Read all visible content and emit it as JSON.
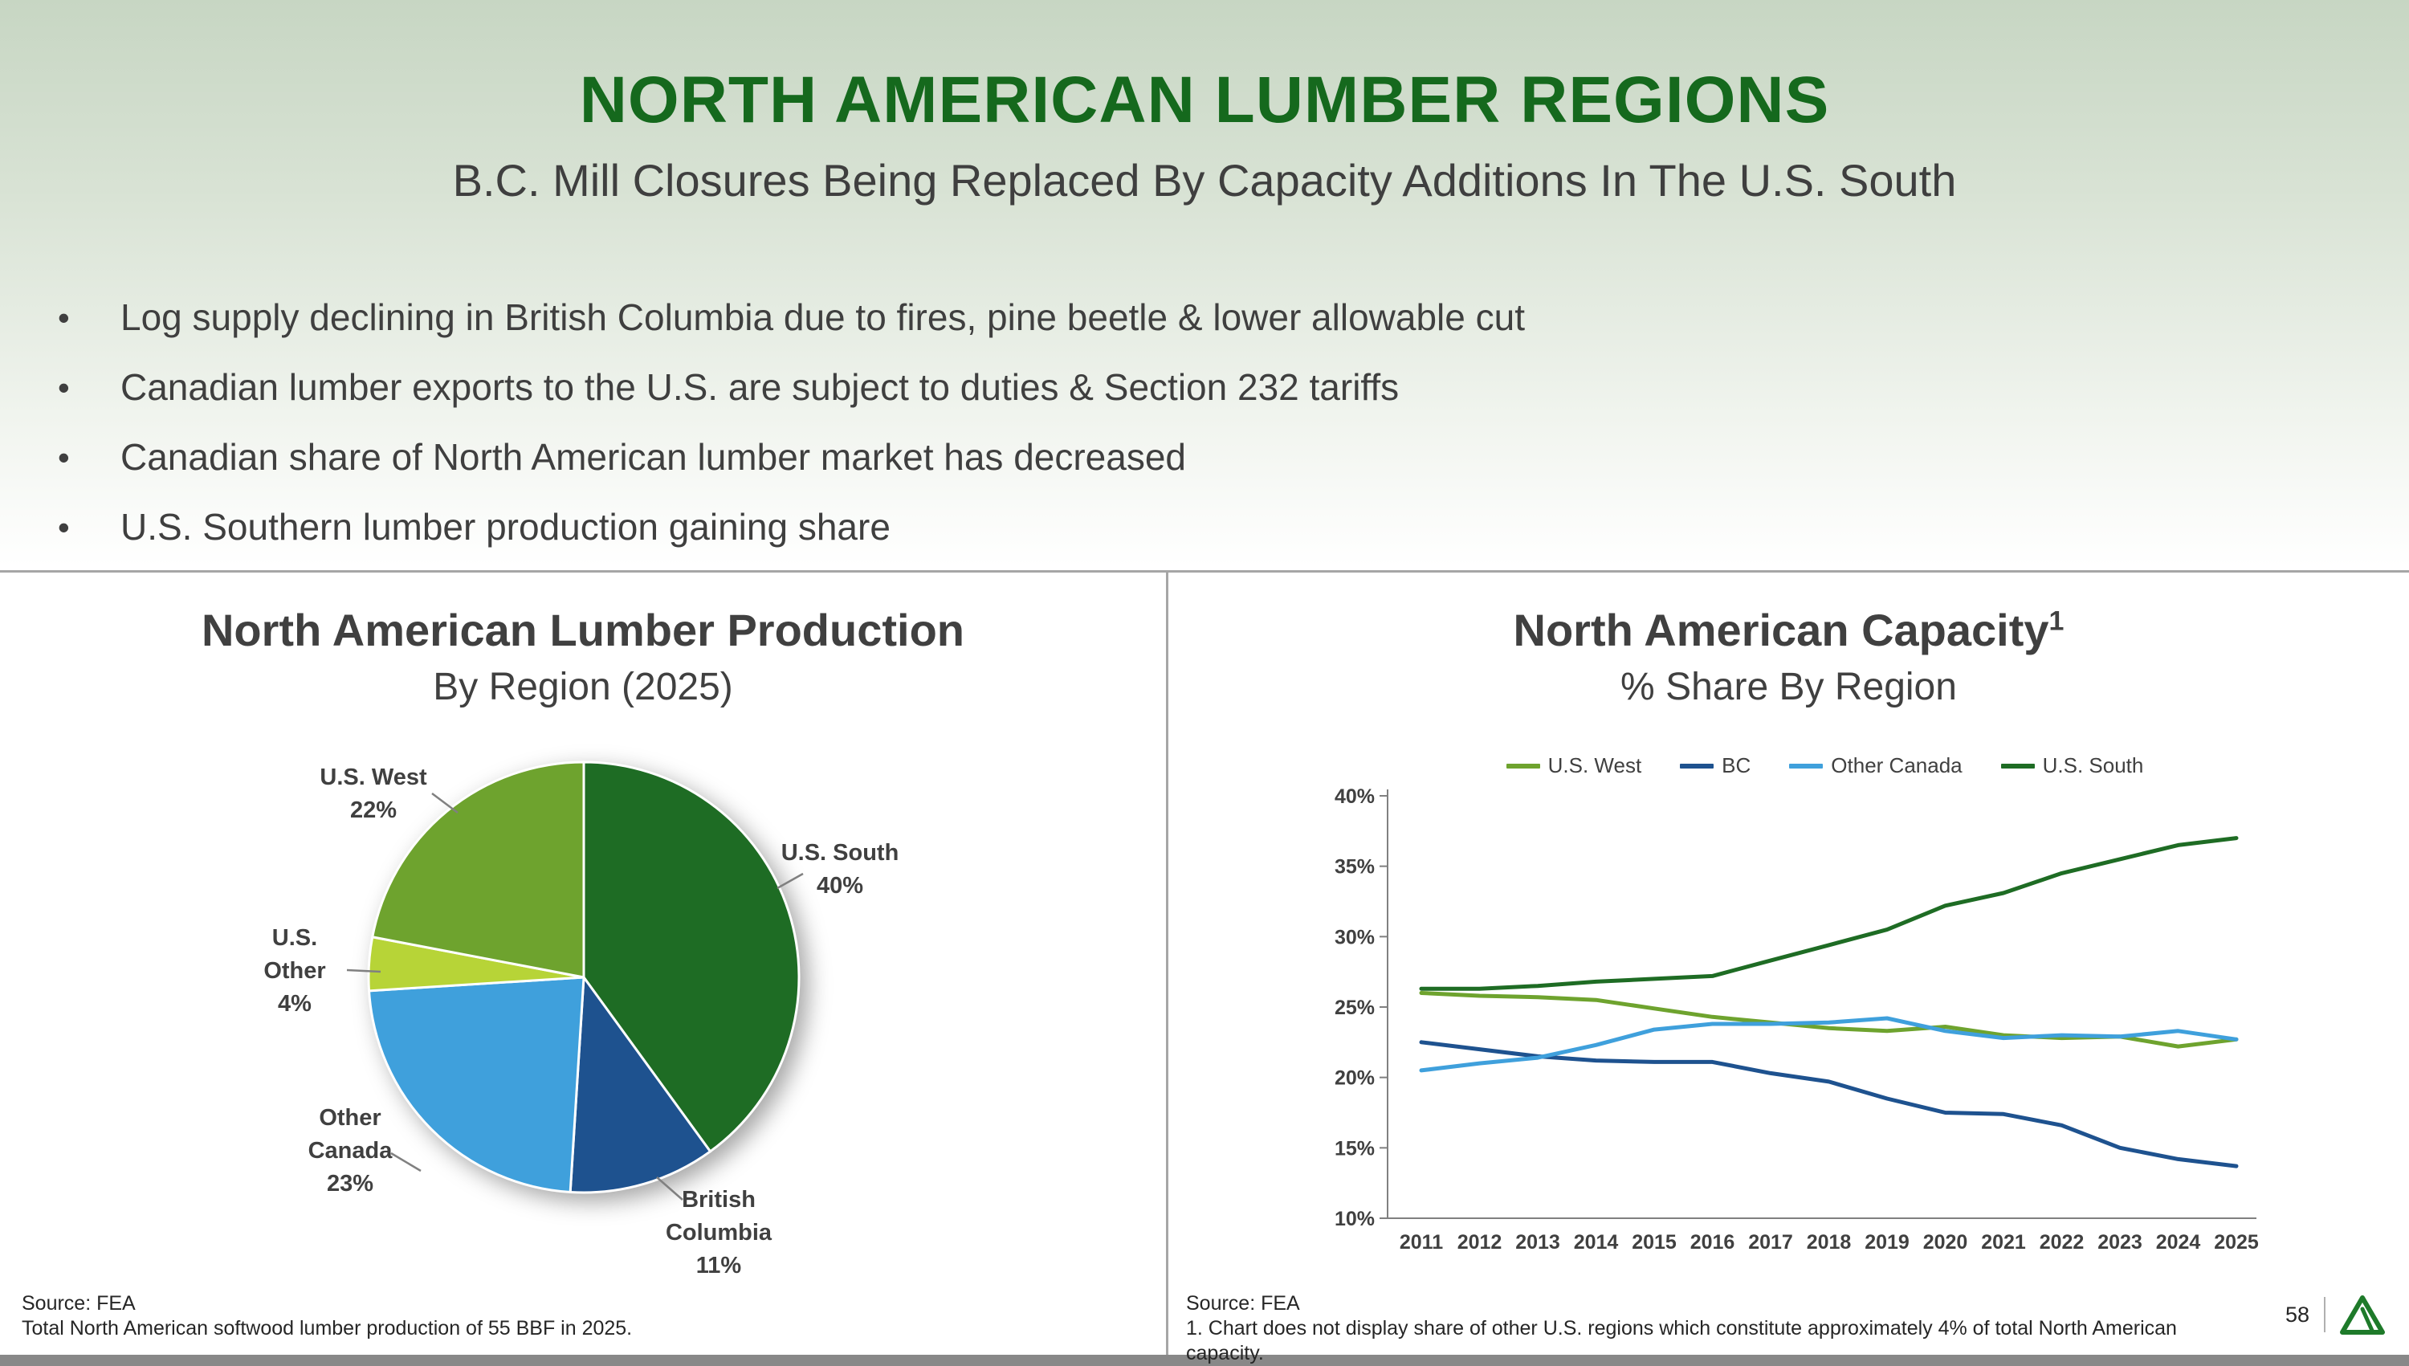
{
  "slide": {
    "title": "NORTH AMERICAN LUMBER REGIONS",
    "subtitle": "B.C. Mill Closures Being Replaced By Capacity Additions In The U.S. South",
    "bullets": [
      "Log supply declining in British Columbia due to fires, pine beetle & lower allowable cut",
      "Canadian lumber exports to the U.S. are subject to duties & Section 232 tariffs",
      "Canadian share of North American lumber market has decreased",
      "U.S. Southern lumber production gaining share"
    ],
    "page_number": "58"
  },
  "left_panel": {
    "title": "North American Lumber Production",
    "subtitle": "By Region (2025)",
    "source_line1": "Source: FEA",
    "source_line2": "Total North American softwood lumber production of 55 BBF in 2025."
  },
  "right_panel": {
    "title": "North American Capacity",
    "title_superscript": "1",
    "subtitle": "% Share By Region",
    "source_line1": "Source: FEA",
    "source_line2": "1. Chart does not display share of other U.S. regions which constitute approximately 4% of total North American capacity."
  },
  "colors": {
    "title_green": "#15691d",
    "us_south_green": "#1e6c24",
    "us_west_olive": "#6ea32e",
    "us_other_lightgreen": "#b7d437",
    "other_canada_blue": "#3fa0dc",
    "bc_dark_blue": "#1e528f",
    "text_dark": "#3f3f3f",
    "divider_gray": "#a6a6a6"
  },
  "chart_data": [
    {
      "type": "pie",
      "title": "North American Lumber Production",
      "subtitle": "By Region (2025)",
      "start_angle_deg": 0,
      "direction": "clockwise",
      "slices": [
        {
          "label": "U.S. South",
          "value": 40,
          "pct": "40%",
          "color": "#1e6c24"
        },
        {
          "label": "British Columbia",
          "value": 11,
          "pct": "11%",
          "color": "#1e528f"
        },
        {
          "label": "Other Canada",
          "value": 23,
          "pct": "23%",
          "color": "#3fa0dc"
        },
        {
          "label": "U.S. Other",
          "value": 4,
          "pct": "4%",
          "color": "#b7d437"
        },
        {
          "label": "U.S. West",
          "value": 22,
          "pct": "22%",
          "color": "#6ea32e"
        }
      ]
    },
    {
      "type": "line",
      "title": "North American Capacity (1)",
      "subtitle": "% Share By Region",
      "legend_position": "top",
      "grid": false,
      "ylim": [
        10,
        40
      ],
      "ytick_step": 5,
      "ytick_suffix": "%",
      "x": [
        2011,
        2012,
        2013,
        2014,
        2015,
        2016,
        2017,
        2018,
        2019,
        2020,
        2021,
        2022,
        2023,
        2024,
        2025
      ],
      "series": [
        {
          "name": "U.S. West",
          "color": "#6ea32e",
          "values": [
            26.0,
            25.8,
            25.7,
            25.5,
            24.9,
            24.3,
            23.9,
            23.5,
            23.3,
            23.6,
            23.0,
            22.8,
            22.9,
            22.2,
            22.7
          ]
        },
        {
          "name": "BC",
          "color": "#1e528f",
          "values": [
            22.5,
            22.0,
            21.5,
            21.2,
            21.1,
            21.1,
            20.3,
            19.7,
            18.5,
            17.5,
            17.4,
            16.6,
            15.0,
            14.2,
            13.7
          ]
        },
        {
          "name": "Other Canada",
          "color": "#3fa0dc",
          "values": [
            20.5,
            21.0,
            21.4,
            22.3,
            23.4,
            23.8,
            23.8,
            23.9,
            24.2,
            23.3,
            22.8,
            23.0,
            22.9,
            23.3,
            22.7
          ]
        },
        {
          "name": "U.S. South",
          "color": "#1e6c24",
          "values": [
            26.3,
            26.3,
            26.5,
            26.8,
            27.0,
            27.2,
            28.3,
            29.4,
            30.5,
            32.2,
            33.1,
            34.5,
            35.5,
            36.5,
            37.0
          ]
        }
      ]
    }
  ]
}
